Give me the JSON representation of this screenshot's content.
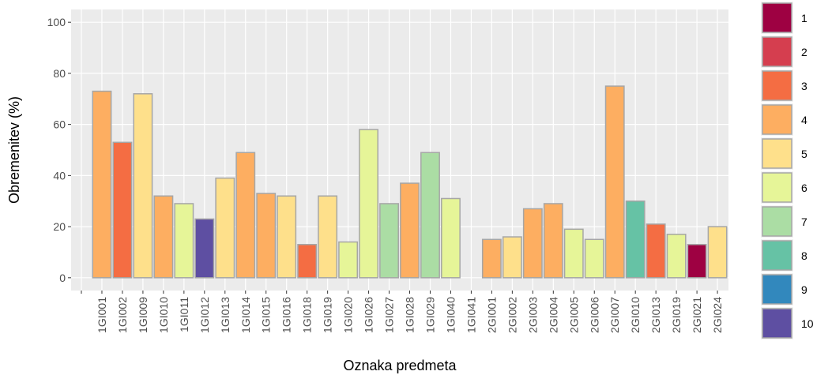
{
  "chart_data": {
    "type": "bar",
    "x_label": "Oznaka predmeta",
    "y_label": "Obremenitev (%)",
    "categories": [
      null,
      "1GI001",
      "1GI002",
      "1GI009",
      "1GI010",
      "1GI011",
      "1GI012",
      "1GI013",
      "1GI014",
      "1GI015",
      "1GI016",
      "1GI018",
      "1GI019",
      "1GI020",
      "1GI026",
      "1GI027",
      "1GI028",
      "1GI029",
      "1GI040",
      "1GI041",
      "2GI001",
      "2GI002",
      "2GI003",
      "2GI004",
      "2GI005",
      "2GI006",
      "2GI007",
      "2GI010",
      "2GI013",
      "2GI019",
      "2GI021",
      "2GI024"
    ],
    "values": [
      null,
      73,
      53,
      72,
      32,
      29,
      23,
      39,
      49,
      33,
      32,
      13,
      32,
      14,
      58,
      29,
      37,
      49,
      31,
      null,
      15,
      16,
      27,
      29,
      19,
      15,
      75,
      30,
      21,
      17,
      13,
      20
    ],
    "colors": [
      null,
      "#FDAE61",
      "#F46D43",
      "#FEE08B",
      "#FDAE61",
      "#E6F598",
      "#5E4FA2",
      "#FEE08B",
      "#FDAE61",
      "#FDAE61",
      "#FEE08B",
      "#F46D43",
      "#FEE08B",
      "#E6F598",
      "#E6F598",
      "#ABDDA4",
      "#FDAE61",
      "#ABDDA4",
      "#E6F598",
      null,
      "#FDAE61",
      "#FEE08B",
      "#FDAE61",
      "#FDAE61",
      "#E6F598",
      "#E6F598",
      "#FDAE61",
      "#66C2A5",
      "#F46D43",
      "#E6F598",
      "#9E0142",
      "#FEE08B"
    ],
    "legend": [
      {
        "name": "1",
        "color": "#9E0142"
      },
      {
        "name": "2",
        "color": "#D53E4F"
      },
      {
        "name": "3",
        "color": "#F46D43"
      },
      {
        "name": "4",
        "color": "#FDAE61"
      },
      {
        "name": "5",
        "color": "#FEE08B"
      },
      {
        "name": "6",
        "color": "#E6F598"
      },
      {
        "name": "7",
        "color": "#ABDDA4"
      },
      {
        "name": "8",
        "color": "#66C2A5"
      },
      {
        "name": "9",
        "color": "#3288BD"
      },
      {
        "name": "10",
        "color": "#5E4FA2"
      }
    ],
    "ylim": [
      -5,
      105
    ],
    "yticks": [
      0,
      20,
      40,
      60,
      80,
      100
    ],
    "grid": true
  }
}
